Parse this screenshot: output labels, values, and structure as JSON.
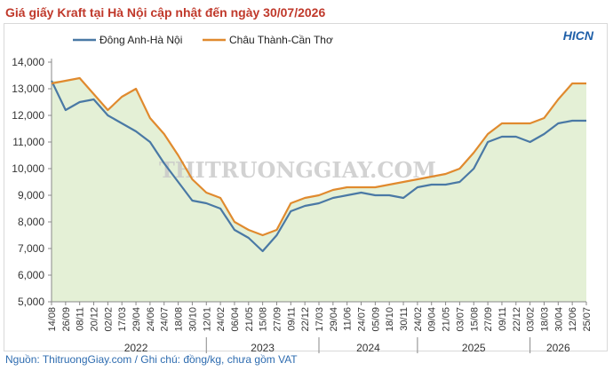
{
  "title": "Giá giấy Kraft tại Hà Nội cập nhật đến ngày 30/07/2026",
  "brand": {
    "prefix": "",
    "text": "HICN"
  },
  "source": "Nguồn: ThitruongGiay.com / Ghi chú: đồng/kg, chưa gồm VAT",
  "watermark": "THITRUONGGIAY.COM",
  "colors": {
    "series1": "#4a79a5",
    "series2": "#e08a2e",
    "fill": "#e4f0d6",
    "title": "#c0392b",
    "source": "#2e6cb0"
  },
  "chart_data": {
    "type": "line",
    "title": "Giá giấy Kraft tại Hà Nội cập nhật đến ngày 30/07/2026",
    "ylabel": "",
    "xlabel": "",
    "ylim": [
      5000,
      14000
    ],
    "yticks": [
      "5,000",
      "6,000",
      "7,000",
      "8,000",
      "9,000",
      "10,000",
      "11,000",
      "12,000",
      "13,000",
      "14,000"
    ],
    "grid": false,
    "legend": "top-left",
    "x": [
      "14/08",
      "26/09",
      "08/11",
      "20/12",
      "02/02",
      "17/03",
      "29/04",
      "24/06",
      "24/07",
      "18/08",
      "30/10",
      "12/01",
      "24/02",
      "06/04",
      "21/05",
      "15/08",
      "27/09",
      "09/11",
      "22/12",
      "17/03",
      "29/04",
      "11/06",
      "24/07",
      "05/09",
      "18/10",
      "30/11",
      "24/02",
      "09/04",
      "21/05",
      "03/07",
      "15/08",
      "27/09",
      "09/11",
      "22/12",
      "03/02",
      "18/03",
      "30/04",
      "12/06",
      "25/07"
    ],
    "year_labels": [
      {
        "label": "2022",
        "from": 2,
        "to": 10
      },
      {
        "label": "2023",
        "from": 11,
        "to": 19
      },
      {
        "label": "2024",
        "from": 19,
        "to": 26
      },
      {
        "label": "2025",
        "from": 26,
        "to": 34
      },
      {
        "label": "2026",
        "from": 34,
        "to": 38
      }
    ],
    "series": [
      {
        "name": "Đông Anh-Hà Nội",
        "values": [
          13300,
          12200,
          12500,
          12600,
          12000,
          11700,
          11400,
          11000,
          10200,
          9500,
          8800,
          8700,
          8500,
          7700,
          7400,
          6900,
          7500,
          8400,
          8600,
          8700,
          8900,
          9000,
          9100,
          9000,
          9000,
          8900,
          9300,
          9400,
          9400,
          9500,
          10000,
          11000,
          11200,
          11200,
          11000,
          11300,
          11700,
          11800,
          11800
        ]
      },
      {
        "name": "Châu Thành-Cần Thơ",
        "values": [
          13200,
          13300,
          13400,
          12800,
          12200,
          12700,
          13000,
          11900,
          11300,
          10500,
          9600,
          9100,
          8900,
          8000,
          7700,
          7500,
          7700,
          8700,
          8900,
          9000,
          9200,
          9300,
          9300,
          9300,
          9400,
          9500,
          9600,
          9700,
          9800,
          10000,
          10600,
          11300,
          11700,
          11700,
          11700,
          11900,
          12600,
          13200,
          13200
        ]
      }
    ]
  }
}
